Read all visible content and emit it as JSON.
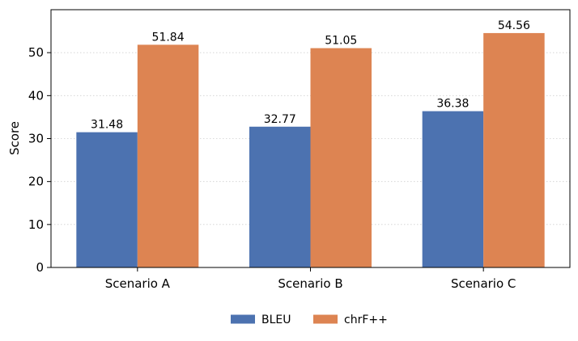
{
  "chart_data": {
    "type": "bar",
    "title": "",
    "xlabel": "",
    "ylabel": "Score",
    "ylim": [
      0,
      60
    ],
    "yticks": [
      0,
      10,
      20,
      30,
      40,
      50
    ],
    "grid": "horizontal-dotted",
    "legend_position": "bottom-center",
    "categories": [
      "Scenario A",
      "Scenario B",
      "Scenario C"
    ],
    "series": [
      {
        "name": "BLEU",
        "color": "#4c72b0",
        "values": [
          31.48,
          32.77,
          36.38
        ],
        "labels": [
          "31.48",
          "32.77",
          "36.38"
        ]
      },
      {
        "name": "chrF++",
        "color": "#dd8452",
        "values": [
          51.84,
          51.05,
          54.56
        ],
        "labels": [
          "51.84",
          "51.05",
          "54.56"
        ]
      }
    ]
  }
}
